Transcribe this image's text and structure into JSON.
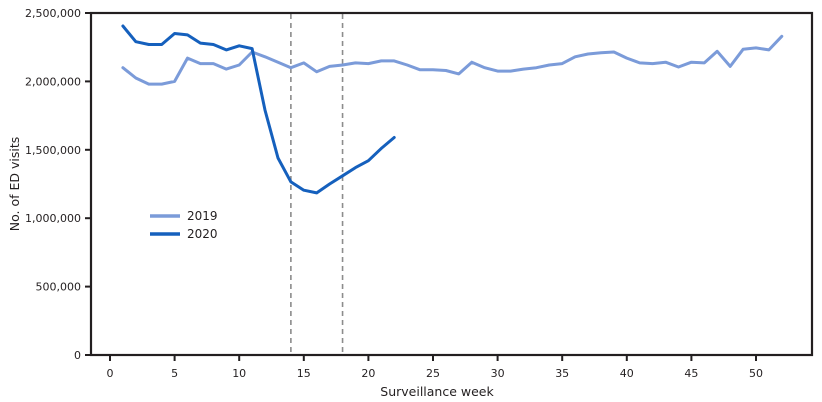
{
  "chart_data": {
    "type": "line",
    "title": "",
    "xlabel": "Surveillance week",
    "ylabel": "No. of ED visits",
    "xlim": [
      -1.5,
      54.3
    ],
    "ylim": [
      0,
      2500000
    ],
    "x_ticks": [
      0,
      5,
      10,
      15,
      20,
      25,
      30,
      35,
      40,
      45,
      50
    ],
    "x_tick_labels": [
      "0",
      "5",
      "10",
      "15",
      "20",
      "25",
      "30",
      "35",
      "40",
      "45",
      "50"
    ],
    "y_ticks": [
      0,
      500000,
      1000000,
      1500000,
      2000000,
      2500000
    ],
    "y_tick_labels": [
      "0",
      "500,000",
      "1,000,000",
      "1,500,000",
      "2,000,000",
      "2,500,000"
    ],
    "grid": false,
    "legend_position": "inside-left-middle",
    "reference_lines": [
      {
        "x": 14,
        "style": "dashed",
        "color": "#8c8c8c"
      },
      {
        "x": 18,
        "style": "dashed",
        "color": "#8c8c8c"
      }
    ],
    "series": [
      {
        "name": "2019",
        "color": "#7b9bd9",
        "x": [
          1,
          2,
          3,
          4,
          5,
          6,
          7,
          8,
          9,
          10,
          11,
          12,
          13,
          14,
          15,
          16,
          17,
          18,
          19,
          20,
          21,
          22,
          23,
          24,
          25,
          26,
          27,
          28,
          29,
          30,
          31,
          32,
          33,
          34,
          35,
          36,
          37,
          38,
          39,
          40,
          41,
          42,
          43,
          44,
          45,
          46,
          47,
          48,
          49,
          50,
          51,
          52
        ],
        "values": [
          2100000,
          2025000,
          1980000,
          1980000,
          2000000,
          2170000,
          2130000,
          2130000,
          2090000,
          2120000,
          2215000,
          2180000,
          2140000,
          2100000,
          2135000,
          2070000,
          2110000,
          2120000,
          2135000,
          2130000,
          2150000,
          2150000,
          2120000,
          2085000,
          2085000,
          2080000,
          2055000,
          2140000,
          2100000,
          2075000,
          2075000,
          2090000,
          2100000,
          2120000,
          2130000,
          2180000,
          2200000,
          2210000,
          2215000,
          2170000,
          2135000,
          2130000,
          2140000,
          2105000,
          2140000,
          2135000,
          2220000,
          2110000,
          2235000,
          2245000,
          2230000,
          2330000
        ]
      },
      {
        "name": "2020",
        "color": "#1560bd",
        "x": [
          1,
          2,
          3,
          4,
          5,
          6,
          7,
          8,
          9,
          10,
          11,
          12,
          13,
          14,
          15,
          16,
          17,
          18,
          19,
          20,
          21,
          22
        ],
        "values": [
          2405000,
          2290000,
          2270000,
          2270000,
          2350000,
          2340000,
          2280000,
          2270000,
          2230000,
          2260000,
          2240000,
          1790000,
          1440000,
          1265000,
          1205000,
          1185000,
          1250000,
          1310000,
          1370000,
          1420000,
          1510000,
          1590000
        ]
      }
    ]
  }
}
